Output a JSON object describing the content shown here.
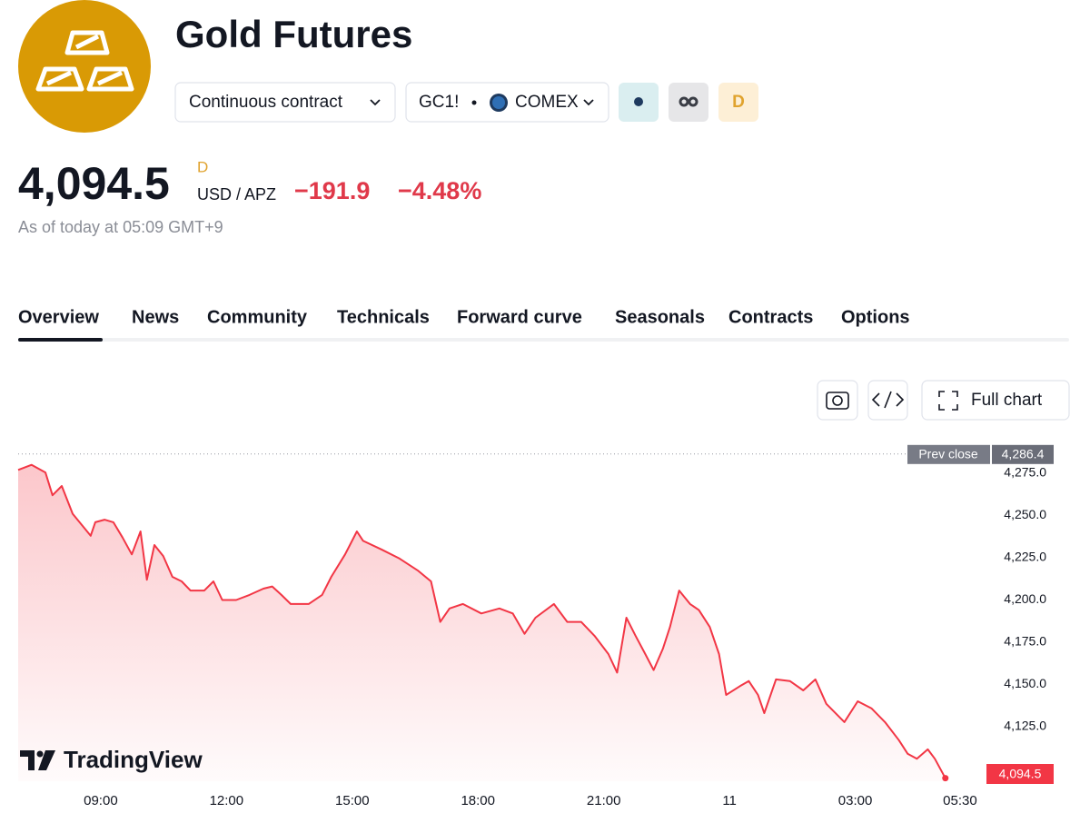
{
  "header": {
    "title": "Gold Futures",
    "contract": "Continuous contract",
    "symbol": "GC1!",
    "exchange": "COMEX",
    "badge": "D",
    "price": "4,094.5",
    "price_flag": "D",
    "currency": "USD / APZ",
    "change": "−191.9",
    "change_pct": "−4.48%",
    "as_of": "As of today at 05:09 GMT+9"
  },
  "tabs": [
    "Overview",
    "News",
    "Community",
    "Technicals",
    "Forward curve",
    "Seasonals",
    "Contracts",
    "Options"
  ],
  "toolbar": {
    "full_chart": "Full chart"
  },
  "watermark": "TradingView",
  "chart_data": {
    "type": "line",
    "color": "#f23645",
    "x": [
      7.03,
      7.35,
      7.68,
      7.85,
      8.07,
      8.33,
      8.76,
      8.87,
      9.09,
      9.3,
      9.52,
      9.74,
      9.95,
      10.1,
      10.28,
      10.49,
      10.71,
      10.93,
      11.14,
      11.47,
      11.69,
      11.9,
      12.23,
      12.55,
      12.88,
      13.09,
      13.31,
      13.53,
      13.96,
      14.28,
      14.5,
      14.83,
      15.11,
      15.26,
      15.69,
      16.13,
      16.56,
      16.88,
      17.1,
      17.32,
      17.64,
      18.08,
      18.51,
      18.83,
      19.11,
      19.37,
      19.81,
      20.13,
      20.46,
      20.78,
      21.11,
      21.32,
      21.54,
      21.76,
      21.97,
      22.19,
      22.41,
      22.58,
      22.8,
      23.06,
      23.27,
      23.53,
      23.75,
      23.92,
      24.25,
      24.46,
      24.68,
      24.83,
      25.11,
      25.44,
      25.76,
      26.05,
      26.31,
      26.74,
      27.06,
      27.39,
      27.71,
      28.04,
      28.25,
      28.47,
      28.73,
      28.9,
      29.15
    ],
    "values": [
      4277,
      4280,
      4275.5,
      4262,
      4267.5,
      4251,
      4238,
      4246,
      4247.5,
      4246,
      4237,
      4227,
      4240.6,
      4212,
      4232.5,
      4226,
      4213.7,
      4211,
      4205.6,
      4205.6,
      4211,
      4200,
      4200,
      4203,
      4206.7,
      4208,
      4203,
      4197.6,
      4197.6,
      4203,
      4213.7,
      4227,
      4240.6,
      4235,
      4230,
      4224.5,
      4217.5,
      4211,
      4187,
      4195,
      4197.6,
      4192,
      4195,
      4192,
      4180,
      4189.5,
      4197.6,
      4187,
      4187,
      4178.8,
      4168,
      4157,
      4189.5,
      4178.8,
      4169,
      4158.5,
      4171,
      4184,
      4205.6,
      4197.6,
      4194,
      4184,
      4168,
      4143.8,
      4149,
      4152,
      4143.8,
      4133,
      4153,
      4152,
      4146.5,
      4153,
      4138.5,
      4127.7,
      4140,
      4135.8,
      4127.7,
      4117,
      4109,
      4106,
      4111.6,
      4106,
      4094.5
    ],
    "xlim": [
      7.03,
      30
    ],
    "xticks": [
      {
        "value": 9,
        "label": "09:00"
      },
      {
        "value": 12,
        "label": "12:00"
      },
      {
        "value": 15,
        "label": "15:00"
      },
      {
        "value": 18,
        "label": "18:00"
      },
      {
        "value": 21,
        "label": "21:00"
      },
      {
        "value": 24,
        "label": "11"
      },
      {
        "value": 27,
        "label": "03:00"
      },
      {
        "value": 29.5,
        "label": "05:30"
      }
    ],
    "ylim": [
      4092.7,
      4290.6
    ],
    "yticks": [
      {
        "value": 4125,
        "label": "4,125.0"
      },
      {
        "value": 4150,
        "label": "4,150.0"
      },
      {
        "value": 4175,
        "label": "4,175.0"
      },
      {
        "value": 4200,
        "label": "4,200.0"
      },
      {
        "value": 4225,
        "label": "4,225.0"
      },
      {
        "value": 4250,
        "label": "4,250.0"
      },
      {
        "value": 4275,
        "label": "4,275.0"
      }
    ],
    "prev_close": {
      "name": "Prev close",
      "value": 4286.4,
      "label": "4,286.4"
    },
    "price_tag": {
      "value": 4094.5,
      "label": "4,094.5"
    }
  }
}
